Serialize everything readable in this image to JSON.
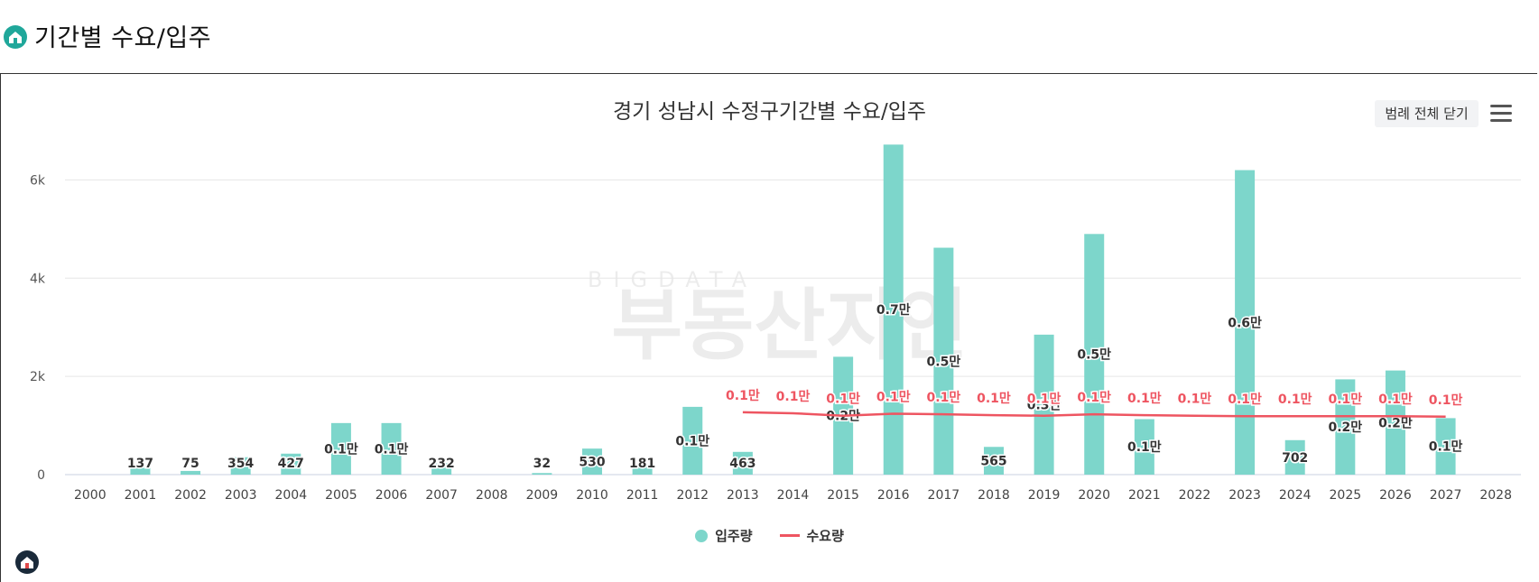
{
  "page": {
    "title": "기간별 수요/입주"
  },
  "toolbar": {
    "legend_toggle_label": "범례 전체 닫기"
  },
  "watermark": {
    "big": "부동산지인",
    "small": "BIGDATA"
  },
  "colors": {
    "bar": "#7dd6cb",
    "line": "#ee5561",
    "brand": "#1fa79a"
  },
  "chart_data": {
    "type": "bar",
    "title": "경기 성남시 수정구기간별 수요/입주",
    "xlabel": "",
    "ylabel": "",
    "ylim": [
      0,
      7000
    ],
    "yticks": [
      0,
      2000,
      4000,
      6000
    ],
    "ytick_labels": [
      "0",
      "2k",
      "4k",
      "6k"
    ],
    "grid": true,
    "legend_position": "bottom",
    "categories": [
      "2000",
      "2001",
      "2002",
      "2003",
      "2004",
      "2005",
      "2006",
      "2007",
      "2008",
      "2009",
      "2010",
      "2011",
      "2012",
      "2013",
      "2014",
      "2015",
      "2016",
      "2017",
      "2018",
      "2019",
      "2020",
      "2021",
      "2022",
      "2023",
      "2024",
      "2025",
      "2026",
      "2027",
      "2028"
    ],
    "series": [
      {
        "name": "입주량",
        "type": "bar",
        "values": [
          0,
          137,
          75,
          354,
          427,
          1050,
          1050,
          232,
          0,
          32,
          530,
          181,
          1380,
          463,
          0,
          2400,
          6720,
          4620,
          565,
          2850,
          4900,
          1130,
          0,
          6200,
          702,
          1940,
          2120,
          1150,
          0
        ],
        "labels": [
          "",
          "137",
          "75",
          "354",
          "427",
          "0.1만",
          "0.1만",
          "232",
          "",
          "32",
          "530",
          "181",
          "0.1만",
          "463",
          "",
          "0.2만",
          "0.7만",
          "0.5만",
          "565",
          "0.3만",
          "0.5만",
          "0.1만",
          "",
          "0.6만",
          "702",
          "0.2만",
          "0.2만",
          "0.1만",
          ""
        ]
      },
      {
        "name": "수요량",
        "type": "line",
        "values": [
          null,
          null,
          null,
          null,
          null,
          null,
          null,
          null,
          null,
          null,
          null,
          null,
          null,
          1270,
          1250,
          1200,
          1240,
          1230,
          1210,
          1200,
          1230,
          1210,
          1200,
          1190,
          1190,
          1190,
          1190,
          1180,
          null
        ],
        "labels": [
          "",
          "",
          "",
          "",
          "",
          "",
          "",
          "",
          "",
          "",
          "",
          "",
          "",
          "0.1만",
          "0.1만",
          "0.1만",
          "0.1만",
          "0.1만",
          "0.1만",
          "0.1만",
          "0.1만",
          "0.1만",
          "0.1만",
          "0.1만",
          "0.1만",
          "0.1만",
          "0.1만",
          "0.1만",
          ""
        ]
      }
    ]
  }
}
